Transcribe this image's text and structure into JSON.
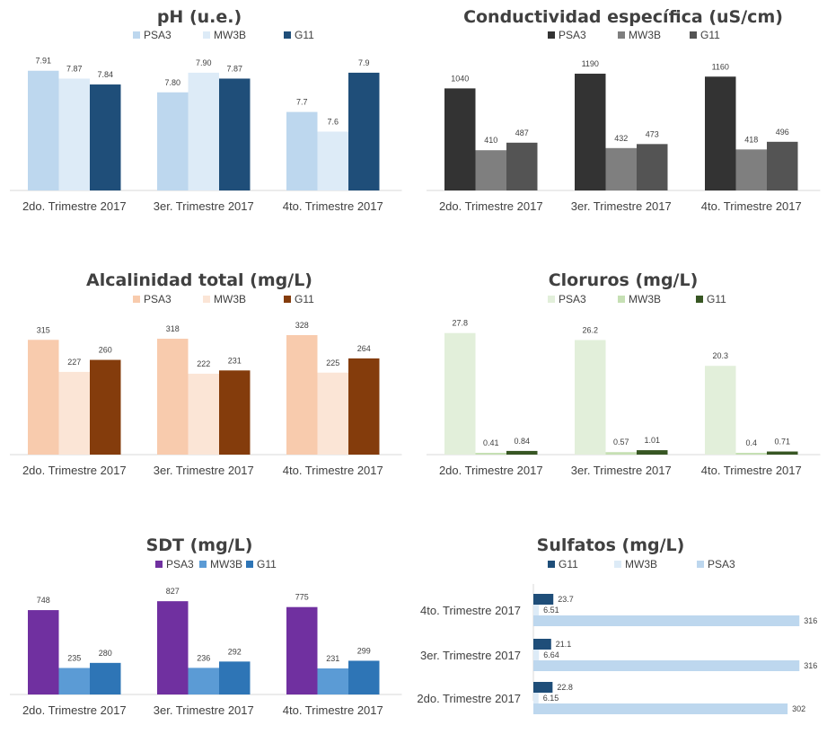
{
  "chart_data": [
    {
      "type": "bar",
      "title": "pH (u.e.)",
      "categories": [
        "2do. Trimestre 2017",
        "3er. Trimestre 2017",
        "4to. Trimestre 2017"
      ],
      "series": [
        {
          "name": "PSA3",
          "values": [
            7.91,
            7.8,
            7.7
          ],
          "labels": [
            "7.91",
            "7.80",
            "7.7"
          ],
          "color": "#bdd7ee"
        },
        {
          "name": "MW3B",
          "values": [
            7.87,
            7.9,
            7.6
          ],
          "labels": [
            "7.87",
            "7.90",
            "7.6"
          ],
          "color": "#ddebf7"
        },
        {
          "name": "G11",
          "values": [
            7.84,
            7.87,
            7.9
          ],
          "labels": [
            "7.84",
            "7.87",
            "7.9"
          ],
          "color": "#1f4e79"
        }
      ],
      "ylim": [
        7.3,
        7.95
      ],
      "legend": "top"
    },
    {
      "type": "bar",
      "title": "Conductividad específica (uS/cm)",
      "categories": [
        "2do. Trimestre 2017",
        "3er. Trimestre 2017",
        "4to. Trimestre 2017"
      ],
      "series": [
        {
          "name": "PSA3",
          "values": [
            1040,
            1190,
            1160
          ],
          "labels": [
            "1040",
            "1190",
            "1160"
          ],
          "color": "#333333"
        },
        {
          "name": "MW3B",
          "values": [
            410,
            432,
            418
          ],
          "labels": [
            "410",
            "432",
            "418"
          ],
          "color": "#7f7f7f"
        },
        {
          "name": "G11",
          "values": [
            487,
            473,
            496
          ],
          "labels": [
            "487",
            "473",
            "496"
          ],
          "color": "#545454"
        }
      ],
      "ylim": [
        0,
        1300
      ],
      "legend": "top"
    },
    {
      "type": "bar",
      "title": "Alcalinidad total (mg/L)",
      "categories": [
        "2do. Trimestre 2017",
        "3er. Trimestre 2017",
        "4to. Trimestre 2017"
      ],
      "series": [
        {
          "name": "PSA3",
          "values": [
            315,
            318,
            328
          ],
          "labels": [
            "315",
            "318",
            "328"
          ],
          "color": "#f8cbad"
        },
        {
          "name": "MW3B",
          "values": [
            227,
            222,
            225
          ],
          "labels": [
            "227",
            "222",
            "225"
          ],
          "color": "#fbe5d6"
        },
        {
          "name": "G11",
          "values": [
            260,
            231,
            264
          ],
          "labels": [
            "260",
            "231",
            "264"
          ],
          "color": "#843c0c"
        }
      ],
      "ylim": [
        0,
        360
      ],
      "legend": "top"
    },
    {
      "type": "bar",
      "title": "Cloruros (mg/L)",
      "categories": [
        "2do. Trimestre 2017",
        "3er. Trimestre 2017",
        "4to. Trimestre 2017"
      ],
      "series": [
        {
          "name": "PSA3",
          "values": [
            27.8,
            26.2,
            20.3
          ],
          "labels": [
            "27.8",
            "26.2",
            "20.3"
          ],
          "color": "#e2efda"
        },
        {
          "name": "MW3B",
          "values": [
            0.41,
            0.57,
            0.4
          ],
          "labels": [
            "0.41",
            "0.57",
            "0.4"
          ],
          "color": "#c6e0b4"
        },
        {
          "name": "G11",
          "values": [
            0.84,
            1.01,
            0.71
          ],
          "labels": [
            "0.84",
            "1.01",
            "0.71"
          ],
          "color": "#375623"
        }
      ],
      "ylim": [
        0,
        30
      ],
      "legend": "top"
    },
    {
      "type": "bar",
      "title": "SDT (mg/L)",
      "categories": [
        "2do. Trimestre 2017",
        "3er. Trimestre 2017",
        "4to. Trimestre 2017"
      ],
      "series": [
        {
          "name": "PSA3",
          "values": [
            748,
            827,
            775
          ],
          "labels": [
            "748",
            "827",
            "775"
          ],
          "color": "#7030a0"
        },
        {
          "name": "MW3B",
          "values": [
            235,
            236,
            231
          ],
          "labels": [
            "235",
            "236",
            "231"
          ],
          "color": "#5b9bd5"
        },
        {
          "name": "G11",
          "values": [
            280,
            292,
            299
          ],
          "labels": [
            "280",
            "292",
            "299"
          ],
          "color": "#2e75b6"
        }
      ],
      "ylim": [
        0,
        900
      ],
      "legend": "top"
    },
    {
      "type": "horizontal-bar",
      "title": "Sulfatos (mg/L)",
      "categories": [
        "4to. Trimestre 2017",
        "3er. Trimestre 2017",
        "2do. Trimestre 2017"
      ],
      "series": [
        {
          "name": "G11",
          "values": [
            23.7,
            21.1,
            22.8
          ],
          "labels": [
            "23.7",
            "21.1",
            "22.8"
          ],
          "color": "#1f4e79"
        },
        {
          "name": "MW3B",
          "values": [
            6.51,
            6.64,
            6.15
          ],
          "labels": [
            "6.51",
            "6.64",
            "6.15"
          ],
          "color": "#ddebf7"
        },
        {
          "name": "PSA3",
          "values": [
            316,
            316,
            302
          ],
          "labels": [
            "316",
            "316",
            "302"
          ],
          "color": "#bdd7ee"
        }
      ],
      "xlim": [
        0,
        320
      ],
      "legend": "top"
    }
  ]
}
